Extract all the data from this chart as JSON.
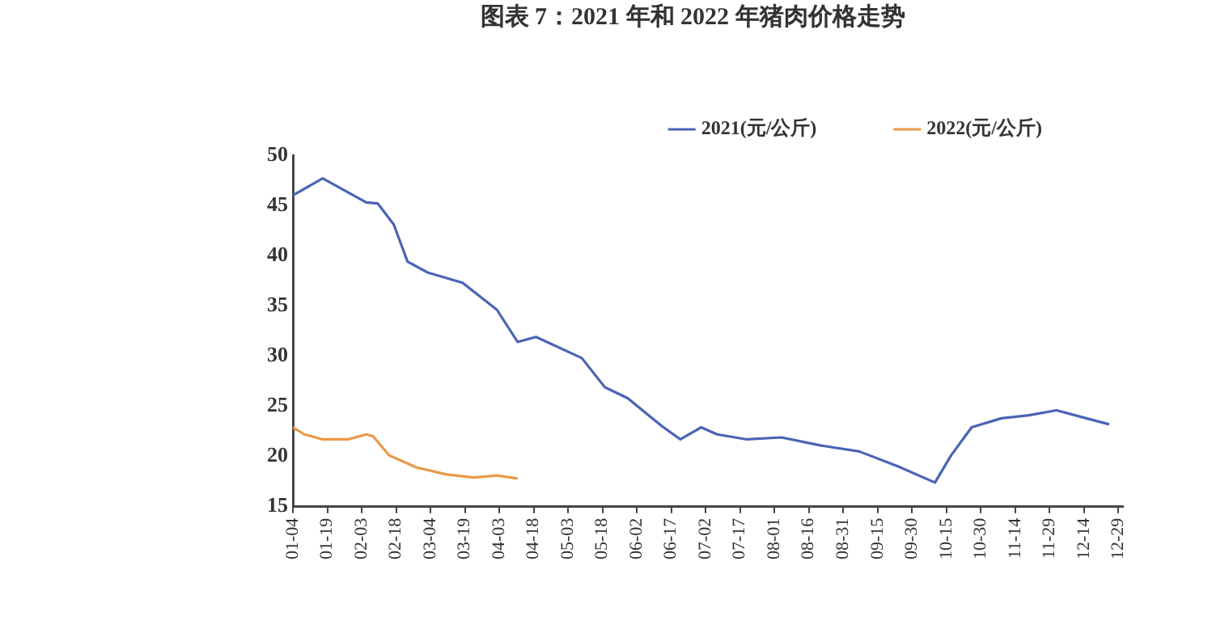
{
  "chart_data": {
    "type": "line",
    "title": "图表 7：2021 年和 2022 年猪肉价格走势",
    "xlim": [
      "--01-04",
      "--12-31"
    ],
    "xticks": [
      {
        "value": "--01-04",
        "label": "01-04"
      },
      {
        "value": "--01-19",
        "label": "01-19"
      },
      {
        "value": "--02-03",
        "label": "02-03"
      },
      {
        "value": "--02-18",
        "label": "02-18"
      },
      {
        "value": "--03-04",
        "label": "03-04"
      },
      {
        "value": "--03-19",
        "label": "03-19"
      },
      {
        "value": "--04-03",
        "label": "04-03"
      },
      {
        "value": "--04-18",
        "label": "04-18"
      },
      {
        "value": "--05-03",
        "label": "05-03"
      },
      {
        "value": "--05-18",
        "label": "05-18"
      },
      {
        "value": "--06-02",
        "label": "06-02"
      },
      {
        "value": "--06-17",
        "label": "06-17"
      },
      {
        "value": "--07-02",
        "label": "07-02"
      },
      {
        "value": "--07-17",
        "label": "07-17"
      },
      {
        "value": "--08-01",
        "label": "08-01"
      },
      {
        "value": "--08-16",
        "label": "08-16"
      },
      {
        "value": "--08-31",
        "label": "08-31"
      },
      {
        "value": "--09-15",
        "label": "09-15"
      },
      {
        "value": "--09-30",
        "label": "09-30"
      },
      {
        "value": "--10-15",
        "label": "10-15"
      },
      {
        "value": "--10-30",
        "label": "10-30"
      },
      {
        "value": "--11-14",
        "label": "11-14"
      },
      {
        "value": "--11-29",
        "label": "11-29"
      },
      {
        "value": "--12-14",
        "label": "12-14"
      },
      {
        "value": "--12-29",
        "label": "12-29"
      }
    ],
    "ylim": [
      15,
      50
    ],
    "yticks": [
      15,
      20,
      25,
      30,
      35,
      40,
      45,
      50
    ],
    "grid": false,
    "legend": "top",
    "marker": "none",
    "line_style": "solid",
    "series": [
      {
        "name": "2021(元/公斤)",
        "color": "#4a63b5",
        "x": [
          "--01-04",
          "--01-17",
          "--02-05",
          "--02-10",
          "--02-17",
          "--02-23",
          "--03-03",
          "--03-18",
          "--04-02",
          "--04-11",
          "--04-19",
          "--05-09",
          "--05-19",
          "--05-29",
          "--06-13",
          "--06-21",
          "--06-30",
          "--07-07",
          "--07-20",
          "--08-04",
          "--08-21",
          "--09-07",
          "--09-24",
          "--10-10",
          "--10-17",
          "--10-26",
          "--11-08",
          "--11-20",
          "--12-02",
          "--12-15",
          "--12-25"
        ],
        "values": [
          46.0,
          47.7,
          45.3,
          45.2,
          43.1,
          39.4,
          38.3,
          37.3,
          34.6,
          31.4,
          31.9,
          29.8,
          26.9,
          25.8,
          23.0,
          21.7,
          22.9,
          22.2,
          21.7,
          21.9,
          21.1,
          20.5,
          19.0,
          17.4,
          20.1,
          22.9,
          23.8,
          24.1,
          24.6,
          23.8,
          23.2
        ]
      },
      {
        "name": "2022(元/公斤)",
        "color": "#e89a48",
        "x": [
          "--01-04",
          "--01-09",
          "--01-17",
          "--01-28",
          "--02-05",
          "--02-08",
          "--02-15",
          "--02-27",
          "--03-11",
          "--03-23",
          "--04-02",
          "--04-11"
        ],
        "values": [
          22.9,
          22.2,
          21.7,
          21.7,
          22.2,
          22.0,
          20.1,
          18.9,
          18.2,
          17.9,
          18.1,
          17.8
        ]
      }
    ]
  }
}
